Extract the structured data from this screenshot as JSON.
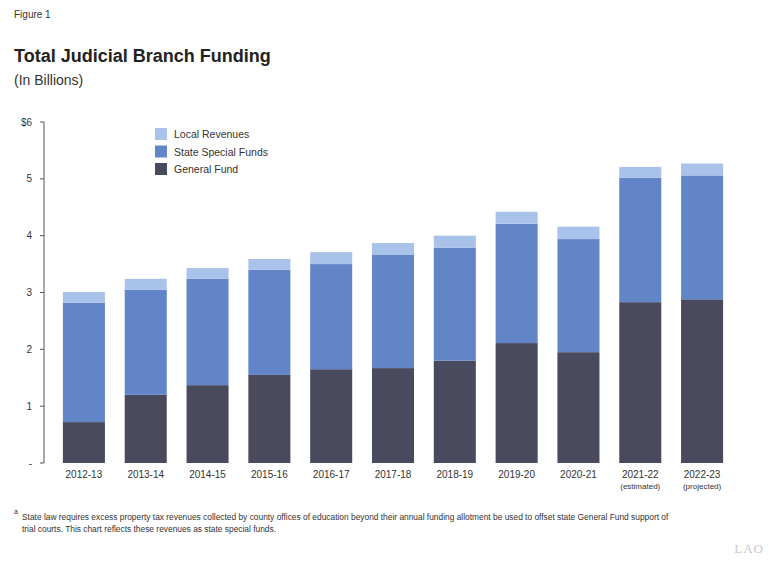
{
  "chart_data": {
    "type": "bar",
    "figure_label": "Figure 1",
    "title": "Total Judicial Branch Funding",
    "subtitle": "(In Billions)",
    "categories": [
      "2012-13",
      "2013-14",
      "2014-15",
      "2015-16",
      "2016-17",
      "2017-18",
      "2018-19",
      "2019-20",
      "2020-21",
      "2021-22\n(estimated)",
      "2022-23\n(projected)"
    ],
    "series": [
      {
        "name": "General Fund",
        "color": "#4a4a5e",
        "values": [
          0.72,
          1.2,
          1.37,
          1.55,
          1.65,
          1.67,
          1.8,
          2.11,
          1.95,
          2.83,
          2.88
        ]
      },
      {
        "name": "State Special Funds",
        "color": "#6285c7",
        "values": [
          2.1,
          1.85,
          1.87,
          1.85,
          1.85,
          1.99,
          1.99,
          2.1,
          1.99,
          2.19,
          2.18
        ]
      },
      {
        "name": "Local Revenues",
        "color": "#a9c2ea",
        "values": [
          0.19,
          0.19,
          0.19,
          0.19,
          0.21,
          0.21,
          0.21,
          0.21,
          0.22,
          0.19,
          0.21
        ]
      }
    ],
    "stacked": true,
    "grid": false,
    "legend": "upper left",
    "ylim": [
      0,
      6
    ],
    "yticks": [
      {
        "value": 0,
        "label": "-"
      },
      1,
      2,
      3,
      4,
      5,
      {
        "value": 6,
        "label": "$6"
      }
    ],
    "footnote_marker": "a",
    "footnote": [
      "State law requires excess property tax revenues collected by county offices of education beyond their annual funding allotment be used to offset state General Fund support of",
      "trial courts. This chart reflects these revenues as state special funds."
    ],
    "logo": "LAO"
  }
}
